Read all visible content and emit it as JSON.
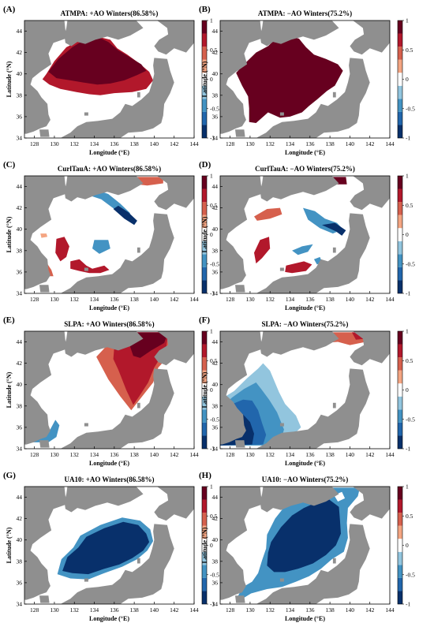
{
  "colors": {
    "land": "#8f8f8f",
    "sea": "#ffffff",
    "colorbar": [
      "#08306b",
      "#2166ac",
      "#4393c3",
      "#92c5de",
      "#ffffff",
      "#f4a582",
      "#d6604d",
      "#b2182b",
      "#67001f"
    ]
  },
  "axes": {
    "xlabel": "Longitude (°E)",
    "ylabel": "Latitude (°N)",
    "xticks": [
      "128",
      "130",
      "132",
      "134",
      "136",
      "138",
      "140",
      "142",
      "144"
    ],
    "yticks": [
      "34",
      "36",
      "38",
      "40",
      "42",
      "44"
    ],
    "colorbar_ticks": [
      "1",
      "0.5",
      "0",
      "-0.5",
      "-1"
    ]
  },
  "panels": [
    {
      "label": "(A)",
      "title": "ATMPA: +AO Winters(86.58%)"
    },
    {
      "label": "(B)",
      "title": "ATMPA: −AO Winters(75.2%)"
    },
    {
      "label": "(C)",
      "title": "CurlTauA: +AO Winters(86.58%)"
    },
    {
      "label": "(D)",
      "title": "CurlTauA: −AO Winters(75.2%)"
    },
    {
      "label": "(E)",
      "title": "SLPA: +AO Winters(86.58%)"
    },
    {
      "label": "(F)",
      "title": "SLPA: −AO Winters(75.2%)"
    },
    {
      "label": "(G)",
      "title": "UA10: +AO Winters(86.58%)"
    },
    {
      "label": "(H)",
      "title": "UA10: −AO Winters(75.2%)"
    }
  ]
}
